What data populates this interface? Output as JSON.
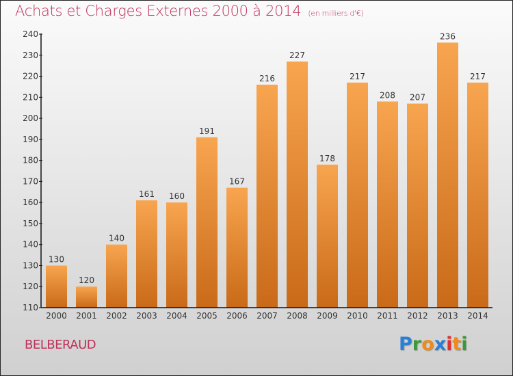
{
  "chart_data": {
    "type": "bar",
    "title": "Achats et Charges Externes 2000 à 2014",
    "subtitle": "(en milliers d'€)",
    "categories": [
      "2000",
      "2001",
      "2002",
      "2003",
      "2004",
      "2005",
      "2006",
      "2007",
      "2008",
      "2009",
      "2010",
      "2011",
      "2012",
      "2013",
      "2014"
    ],
    "values": [
      130,
      120,
      140,
      161,
      160,
      191,
      167,
      216,
      227,
      178,
      217,
      208,
      207,
      236,
      217
    ],
    "xlabel": "",
    "ylabel": "",
    "ylim": [
      110,
      240
    ],
    "yticks": [
      110,
      120,
      130,
      140,
      150,
      160,
      170,
      180,
      190,
      200,
      210,
      220,
      230,
      240
    ],
    "grid": false,
    "legend": "none",
    "bar_color": "#e8852c"
  },
  "place_name": "BELBERAUD",
  "logo": {
    "letters": [
      {
        "ch": "P",
        "color": "#2a7fd4"
      },
      {
        "ch": "r",
        "color": "#3a9a3a"
      },
      {
        "ch": "o",
        "color": "#f08a1c"
      },
      {
        "ch": "x",
        "color": "#2a7fd4"
      },
      {
        "ch": "i",
        "color": "#e03030"
      },
      {
        "ch": "t",
        "color": "#f08a1c"
      },
      {
        "ch": "i",
        "color": "#3a9a3a"
      }
    ]
  }
}
